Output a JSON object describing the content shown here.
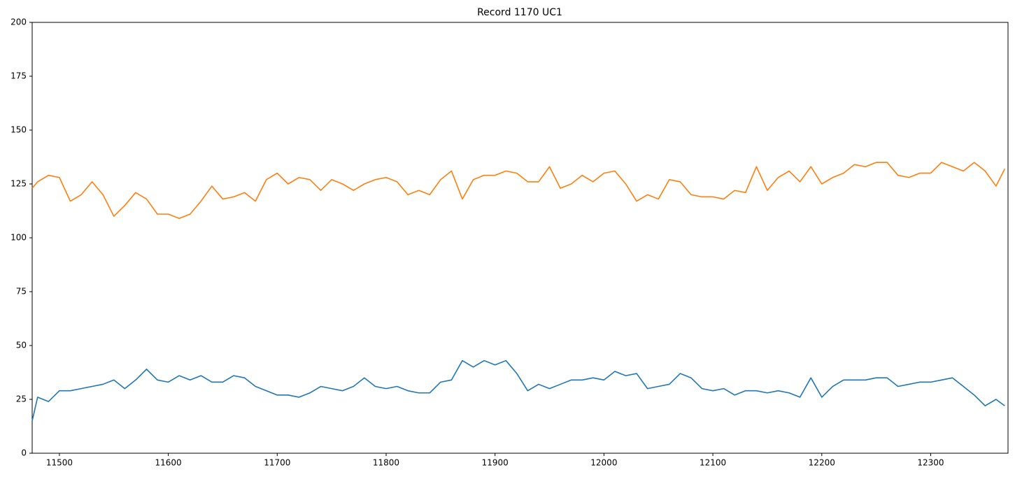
{
  "chart_data": {
    "type": "line",
    "title": "Record 1170 UC1",
    "x": [
      11475,
      11480,
      11490,
      11500,
      11510,
      11520,
      11530,
      11540,
      11550,
      11560,
      11570,
      11580,
      11590,
      11600,
      11610,
      11620,
      11630,
      11640,
      11650,
      11660,
      11670,
      11680,
      11690,
      11700,
      11710,
      11720,
      11730,
      11740,
      11750,
      11760,
      11770,
      11780,
      11790,
      11800,
      11810,
      11820,
      11830,
      11840,
      11850,
      11860,
      11870,
      11880,
      11890,
      11900,
      11910,
      11920,
      11930,
      11940,
      11950,
      11960,
      11970,
      11980,
      11990,
      12000,
      12010,
      12020,
      12030,
      12040,
      12050,
      12060,
      12070,
      12080,
      12090,
      12100,
      12110,
      12120,
      12130,
      12140,
      12150,
      12160,
      12170,
      12180,
      12190,
      12200,
      12210,
      12220,
      12230,
      12240,
      12250,
      12260,
      12270,
      12280,
      12290,
      12300,
      12310,
      12320,
      12330,
      12340,
      12350,
      12360,
      12368
    ],
    "series": [
      {
        "color": "#1f77b4",
        "values": [
          15,
          26,
          24,
          29,
          29,
          30,
          31,
          32,
          34,
          30,
          34,
          39,
          34,
          33,
          36,
          34,
          36,
          33,
          33,
          36,
          35,
          31,
          29,
          27,
          27,
          26,
          28,
          31,
          30,
          29,
          31,
          35,
          31,
          30,
          31,
          29,
          28,
          28,
          33,
          34,
          43,
          40,
          43,
          41,
          43,
          37,
          29,
          32,
          30,
          32,
          34,
          34,
          35,
          34,
          38,
          36,
          37,
          30,
          31,
          32,
          37,
          35,
          30,
          29,
          30,
          27,
          29,
          29,
          28,
          29,
          28,
          26,
          35,
          26,
          31,
          34,
          34,
          34,
          35,
          35,
          31,
          32,
          33,
          33,
          34,
          35,
          31,
          27,
          22,
          25,
          22
        ]
      },
      {
        "color": "#ff7f0e",
        "values": [
          123,
          126,
          129,
          128,
          117,
          120,
          126,
          120,
          110,
          115,
          121,
          118,
          111,
          111,
          109,
          111,
          117,
          124,
          118,
          119,
          121,
          117,
          127,
          130,
          125,
          128,
          127,
          122,
          127,
          125,
          122,
          125,
          127,
          128,
          126,
          120,
          122,
          120,
          127,
          131,
          118,
          127,
          129,
          129,
          131,
          130,
          126,
          126,
          133,
          123,
          125,
          129,
          126,
          130,
          131,
          125,
          117,
          120,
          118,
          127,
          126,
          120,
          119,
          119,
          118,
          122,
          121,
          133,
          122,
          128,
          131,
          126,
          133,
          125,
          128,
          130,
          134,
          133,
          135,
          135,
          129,
          128,
          130,
          130,
          135,
          133,
          131,
          135,
          131,
          124,
          132
        ]
      }
    ],
    "xlim": [
      11475,
      12371
    ],
    "xticks": [
      11500,
      11600,
      11700,
      11800,
      11900,
      12000,
      12100,
      12200,
      12300
    ],
    "ylim": [
      0,
      200
    ],
    "yticks": [
      0,
      25,
      50,
      75,
      100,
      125,
      150,
      175,
      200
    ],
    "grid": false
  }
}
